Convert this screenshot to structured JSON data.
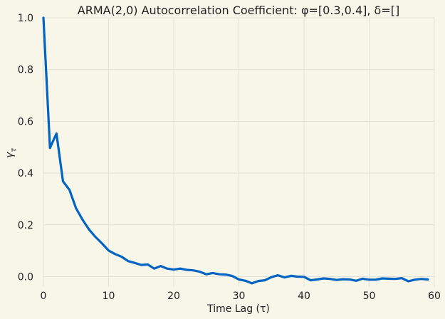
{
  "chart_data": {
    "type": "line",
    "title": "ARMA(2,0) Autocorrelation Coefficient: φ=[0.3,0.4], δ=[]",
    "xlabel": "Time Lag (τ)",
    "ylabel": "γ",
    "ylabel_subscript": "τ",
    "xlim": [
      0,
      60
    ],
    "ylim": [
      -0.04,
      1.0
    ],
    "xticks": [
      0,
      10,
      20,
      30,
      40,
      50,
      60
    ],
    "yticks": [
      0.0,
      0.2,
      0.4,
      0.6,
      0.8,
      1.0
    ],
    "ytick_labels": [
      "0.0",
      "0.2",
      "0.4",
      "0.6",
      "0.8",
      "1.0"
    ],
    "grid": true,
    "series": [
      {
        "color": "#0064c2",
        "x": [
          0,
          1,
          2,
          3,
          4,
          5,
          6,
          7,
          8,
          9,
          10,
          11,
          12,
          13,
          14,
          15,
          16,
          17,
          18,
          19,
          20,
          21,
          22,
          23,
          24,
          25,
          26,
          27,
          28,
          29,
          30,
          31,
          32,
          33,
          34,
          35,
          36,
          37,
          38,
          39,
          40,
          41,
          42,
          43,
          44,
          45,
          46,
          47,
          48,
          49,
          50,
          51,
          52,
          53,
          54,
          55,
          56,
          57,
          58,
          59
        ],
        "values": [
          1.0,
          0.497,
          0.553,
          0.368,
          0.335,
          0.264,
          0.22,
          0.182,
          0.153,
          0.128,
          0.101,
          0.087,
          0.077,
          0.06,
          0.053,
          0.045,
          0.047,
          0.031,
          0.041,
          0.031,
          0.027,
          0.031,
          0.026,
          0.024,
          0.019,
          0.009,
          0.014,
          0.009,
          0.008,
          0.002,
          -0.011,
          -0.016,
          -0.026,
          -0.017,
          -0.014,
          -0.002,
          0.005,
          -0.003,
          0.003,
          0.0,
          -0.001,
          -0.014,
          -0.011,
          -0.007,
          -0.009,
          -0.013,
          -0.01,
          -0.011,
          -0.016,
          -0.008,
          -0.012,
          -0.012,
          -0.007,
          -0.008,
          -0.009,
          -0.006,
          -0.018,
          -0.012,
          -0.009,
          -0.011
        ]
      }
    ]
  }
}
